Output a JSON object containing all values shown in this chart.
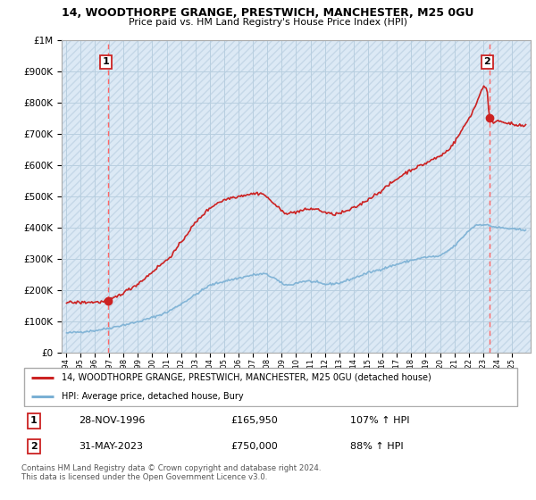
{
  "title": "14, WOODTHORPE GRANGE, PRESTWICH, MANCHESTER, M25 0GU",
  "subtitle": "Price paid vs. HM Land Registry's House Price Index (HPI)",
  "legend_line1": "14, WOODTHORPE GRANGE, PRESTWICH, MANCHESTER, M25 0GU (detached house)",
  "legend_line2": "HPI: Average price, detached house, Bury",
  "transaction1_date": "28-NOV-1996",
  "transaction1_price": 165950,
  "transaction1_pct": "107% ↑ HPI",
  "transaction2_date": "31-MAY-2023",
  "transaction2_price": 750000,
  "transaction2_pct": "88% ↑ HPI",
  "footer": "Contains HM Land Registry data © Crown copyright and database right 2024.\nThis data is licensed under the Open Government Licence v3.0.",
  "property_color": "#cc2222",
  "hpi_color": "#7ab0d4",
  "bg_color": "#dce9f5",
  "grid_color": "#b8cfe0",
  "ylim_min": 0,
  "ylim_max": 1000000,
  "transaction1_x": 1996.917,
  "transaction2_x": 2023.417
}
